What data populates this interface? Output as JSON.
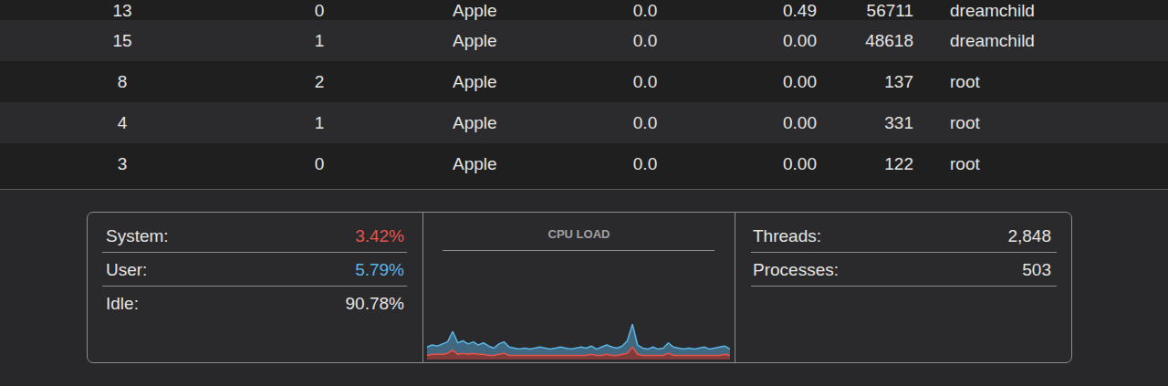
{
  "table": {
    "rows": [
      [
        "13",
        "0",
        "Apple",
        "0.0",
        "0.49",
        "56711",
        "dreamchild"
      ],
      [
        "15",
        "1",
        "Apple",
        "0.0",
        "0.00",
        "48618",
        "dreamchild"
      ],
      [
        "8",
        "2",
        "Apple",
        "0.0",
        "0.00",
        "137",
        "root"
      ],
      [
        "4",
        "1",
        "Apple",
        "0.0",
        "0.00",
        "331",
        "root"
      ],
      [
        "3",
        "0",
        "Apple",
        "0.0",
        "0.00",
        "122",
        "root"
      ]
    ]
  },
  "summary": {
    "left": [
      {
        "label": "System:",
        "value": "3.42%",
        "color": "#e5534b"
      },
      {
        "label": "User:",
        "value": "5.79%",
        "color": "#5ab4e6"
      },
      {
        "label": "Idle:",
        "value": "90.78%",
        "color": "#e4e4e4"
      }
    ],
    "right": [
      {
        "label": "Threads:",
        "value": "2,848"
      },
      {
        "label": "Processes:",
        "value": "503"
      }
    ]
  },
  "chart_data": {
    "type": "line",
    "title": "CPU LOAD",
    "stacked": true,
    "grid": false,
    "tick_labels": false,
    "ylim": [
      0,
      100
    ],
    "categories": [
      null,
      null,
      null,
      null,
      null,
      null,
      null,
      null,
      null,
      null,
      null,
      null,
      null,
      null,
      null,
      null,
      null,
      null,
      null,
      null,
      null,
      null,
      null,
      null,
      null,
      null,
      null,
      null,
      null,
      null,
      null,
      null,
      null,
      null,
      null,
      null,
      null,
      null,
      null,
      null,
      null,
      null,
      null,
      null,
      null,
      null,
      null,
      null,
      null,
      null,
      null,
      null,
      null,
      null,
      null,
      null,
      null,
      null,
      null,
      null
    ],
    "series": [
      {
        "name": "System",
        "color": "#e5534b",
        "values": [
          4,
          5,
          5,
          5,
          6,
          9,
          5,
          6,
          5,
          6,
          5,
          5,
          4,
          4,
          5,
          6,
          4,
          4,
          4,
          4,
          4,
          4,
          4,
          4,
          4,
          4,
          4,
          4,
          4,
          4,
          4,
          4,
          5,
          4,
          4,
          5,
          4,
          4,
          5,
          6,
          12,
          5,
          4,
          4,
          4,
          4,
          4,
          6,
          4,
          4,
          4,
          4,
          4,
          4,
          4,
          4,
          4,
          4,
          5,
          4
        ]
      },
      {
        "name": "User",
        "color": "#5ab4e6",
        "values": [
          8,
          9,
          8,
          10,
          11,
          18,
          11,
          12,
          10,
          11,
          9,
          11,
          9,
          7,
          10,
          11,
          8,
          7,
          6,
          7,
          6,
          7,
          8,
          7,
          6,
          7,
          8,
          7,
          6,
          7,
          8,
          7,
          8,
          6,
          8,
          9,
          8,
          7,
          8,
          12,
          22,
          9,
          7,
          6,
          8,
          6,
          7,
          10,
          8,
          7,
          6,
          7,
          6,
          7,
          8,
          6,
          7,
          8,
          8,
          6
        ]
      }
    ]
  }
}
